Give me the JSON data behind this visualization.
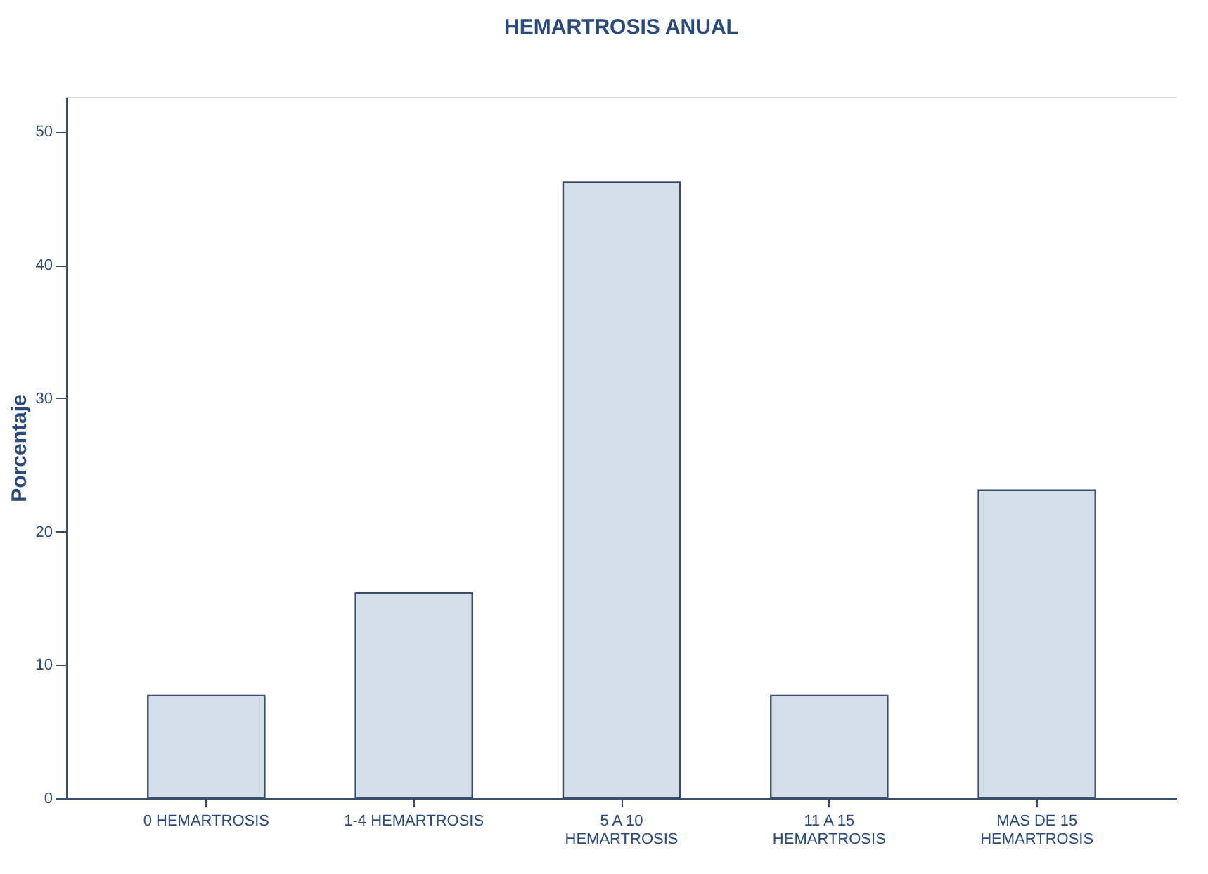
{
  "chart_data": {
    "type": "bar",
    "title": "HEMARTROSIS ANUAL",
    "ylabel": "Porcentaje",
    "categories": [
      "0 HEMARTROSIS",
      "1-4 HEMARTROSIS",
      "5 A 10\nHEMARTROSIS",
      "11 A 15\nHEMARTROSIS",
      "MAS DE 15\nHEMARTROSIS"
    ],
    "values": [
      7.7,
      15.4,
      46.2,
      7.7,
      23.1
    ],
    "color": "#d5dde8",
    "ylim": [
      0,
      52.6
    ],
    "yticks": [
      0,
      10,
      20,
      30,
      40,
      50
    ],
    "grid": false
  }
}
